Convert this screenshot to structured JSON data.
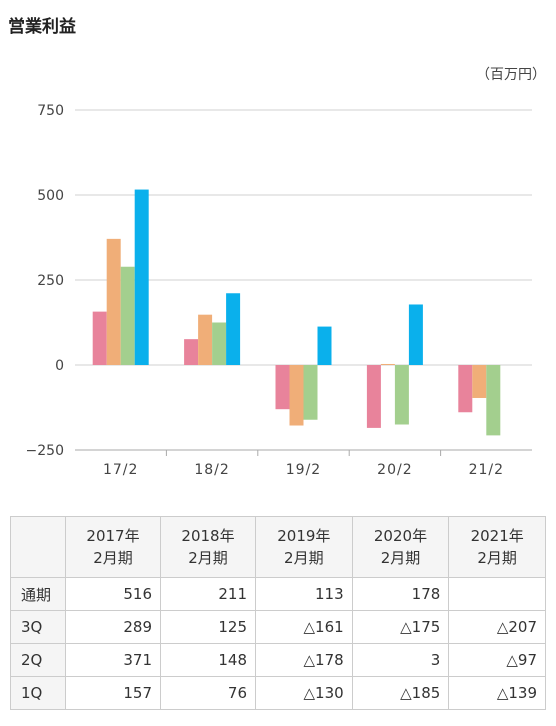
{
  "page": {
    "title": "営業利益",
    "unit": "（百万円）"
  },
  "chart_data": {
    "type": "bar",
    "categories": [
      "17/2",
      "18/2",
      "19/2",
      "20/2",
      "21/2"
    ],
    "series": [
      {
        "name": "1Q",
        "color": "#e8839b",
        "values": [
          157,
          76,
          -130,
          -185,
          -139
        ]
      },
      {
        "name": "2Q",
        "color": "#f0ae78",
        "values": [
          371,
          148,
          -178,
          3,
          -97
        ]
      },
      {
        "name": "3Q",
        "color": "#a3cf8e",
        "values": [
          289,
          125,
          -161,
          -175,
          -207
        ]
      },
      {
        "name": "通期",
        "color": "#0ab0ec",
        "values": [
          516,
          211,
          113,
          178,
          null
        ]
      }
    ],
    "ylim": [
      -250,
      750
    ],
    "yticks": [
      -250,
      0,
      250,
      500,
      750
    ],
    "ytick_labels": [
      "−250",
      "0",
      "250",
      "500",
      "750"
    ],
    "grid": true,
    "title": "",
    "xlabel": "",
    "ylabel": ""
  },
  "table": {
    "columns": [
      {
        "year": "2017年",
        "period": "2月期"
      },
      {
        "year": "2018年",
        "period": "2月期"
      },
      {
        "year": "2019年",
        "period": "2月期"
      },
      {
        "year": "2020年",
        "period": "2月期"
      },
      {
        "year": "2021年",
        "period": "2月期"
      }
    ],
    "rows": [
      {
        "label": "通期",
        "cells": [
          "516",
          "211",
          "113",
          "178",
          ""
        ]
      },
      {
        "label": "3Q",
        "cells": [
          "289",
          "125",
          "△161",
          "△175",
          "△207"
        ]
      },
      {
        "label": "2Q",
        "cells": [
          "371",
          "148",
          "△178",
          "3",
          "△97"
        ]
      },
      {
        "label": "1Q",
        "cells": [
          "157",
          "76",
          "△130",
          "△185",
          "△139"
        ]
      }
    ]
  }
}
